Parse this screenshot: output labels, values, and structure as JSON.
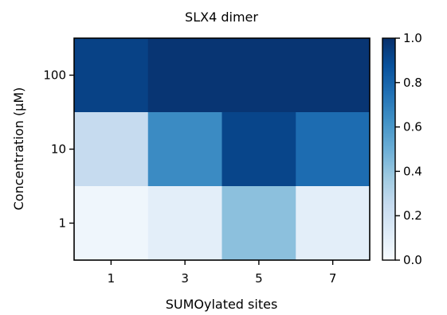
{
  "chart_data": {
    "type": "heatmap",
    "title": "SLX4 dimer",
    "xlabel": "SUMOylated sites",
    "ylabel": "Concentration (μM)",
    "x_categories": [
      "1",
      "3",
      "5",
      "7"
    ],
    "y_categories": [
      "100",
      "10",
      "1"
    ],
    "values": [
      [
        0.93,
        0.98,
        0.98,
        0.98
      ],
      [
        0.25,
        0.65,
        0.92,
        0.77
      ],
      [
        0.04,
        0.1,
        0.42,
        0.1
      ]
    ],
    "colorbar": {
      "min": 0.0,
      "max": 1.0,
      "ticks": [
        "0.0",
        "0.2",
        "0.4",
        "0.6",
        "0.8",
        "1.0"
      ],
      "colormap": "Blues"
    }
  }
}
